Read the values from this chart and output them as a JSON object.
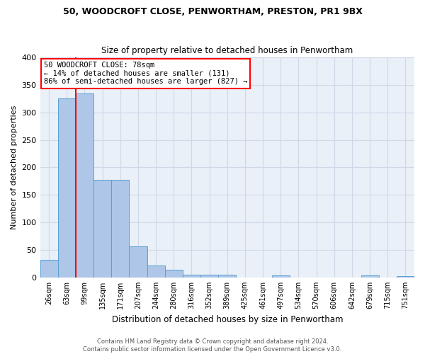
{
  "title1": "50, WOODCROFT CLOSE, PENWORTHAM, PRESTON, PR1 9BX",
  "title2": "Size of property relative to detached houses in Penwortham",
  "xlabel": "Distribution of detached houses by size in Penwortham",
  "ylabel": "Number of detached properties",
  "bar_labels": [
    "26sqm",
    "63sqm",
    "99sqm",
    "135sqm",
    "171sqm",
    "207sqm",
    "244sqm",
    "280sqm",
    "316sqm",
    "352sqm",
    "389sqm",
    "425sqm",
    "461sqm",
    "497sqm",
    "534sqm",
    "570sqm",
    "606sqm",
    "642sqm",
    "679sqm",
    "715sqm",
    "751sqm"
  ],
  "bar_values": [
    32,
    325,
    335,
    178,
    178,
    57,
    22,
    14,
    5,
    5,
    5,
    0,
    0,
    4,
    0,
    0,
    0,
    0,
    4,
    0,
    3
  ],
  "bar_color": "#aec6e8",
  "bar_edge_color": "#5a9fd4",
  "vline_x": 1.5,
  "annotation_line1": "50 WOODCROFT CLOSE: 78sqm",
  "annotation_line2": "← 14% of detached houses are smaller (131)",
  "annotation_line3": "86% of semi-detached houses are larger (827) →",
  "annotation_box_color": "white",
  "annotation_box_edge": "red",
  "vline_color": "red",
  "grid_color": "#d0d8e8",
  "background_color": "#eaf0f8",
  "footer_text": "Contains HM Land Registry data © Crown copyright and database right 2024.\nContains public sector information licensed under the Open Government Licence v3.0.",
  "ylim": [
    0,
    400
  ],
  "yticks": [
    0,
    50,
    100,
    150,
    200,
    250,
    300,
    350,
    400
  ]
}
